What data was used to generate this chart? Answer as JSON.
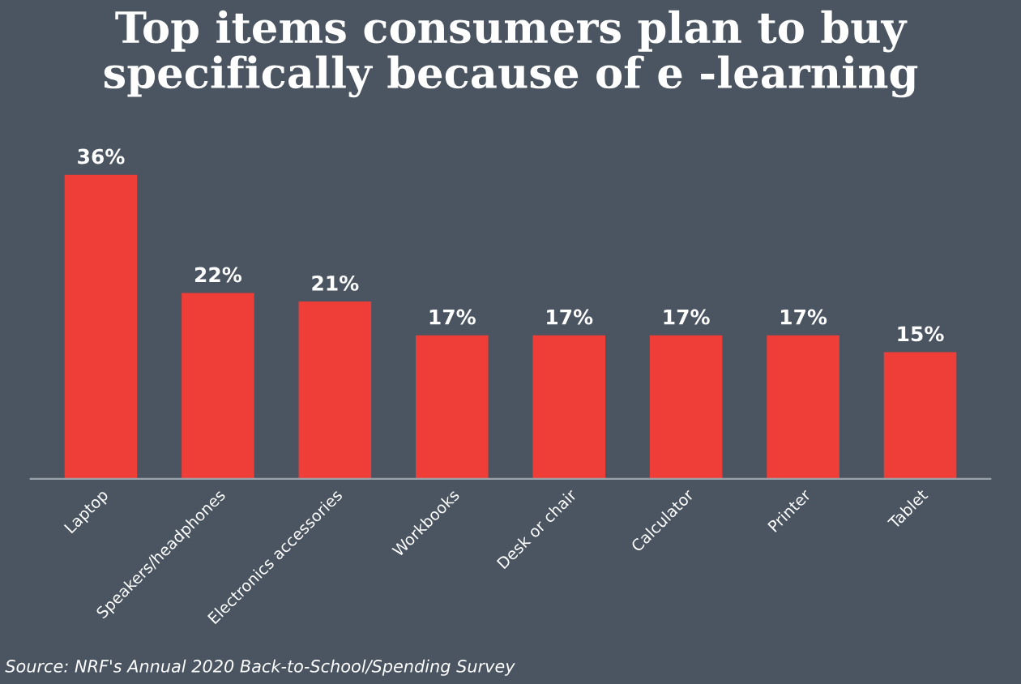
{
  "chart_data": {
    "type": "bar",
    "title": "Top items consumers plan to buy\nspecifically because of e -learning",
    "categories": [
      "Laptop",
      "Speakers/headphones",
      "Electronics accessories",
      "Workbooks",
      "Desk or chair",
      "Calculator",
      "Printer",
      "Tablet"
    ],
    "values": [
      36,
      22,
      21,
      17,
      17,
      17,
      17,
      15
    ],
    "value_labels": [
      "36%",
      "22%",
      "21%",
      "17%",
      "17%",
      "17%",
      "17%",
      "15%"
    ],
    "color": "#ee3e37",
    "tick_labels": "x",
    "grid": false,
    "annotations": [
      "Source: NRF's Annual 2020 Back-to-School/Spending Survey"
    ]
  }
}
